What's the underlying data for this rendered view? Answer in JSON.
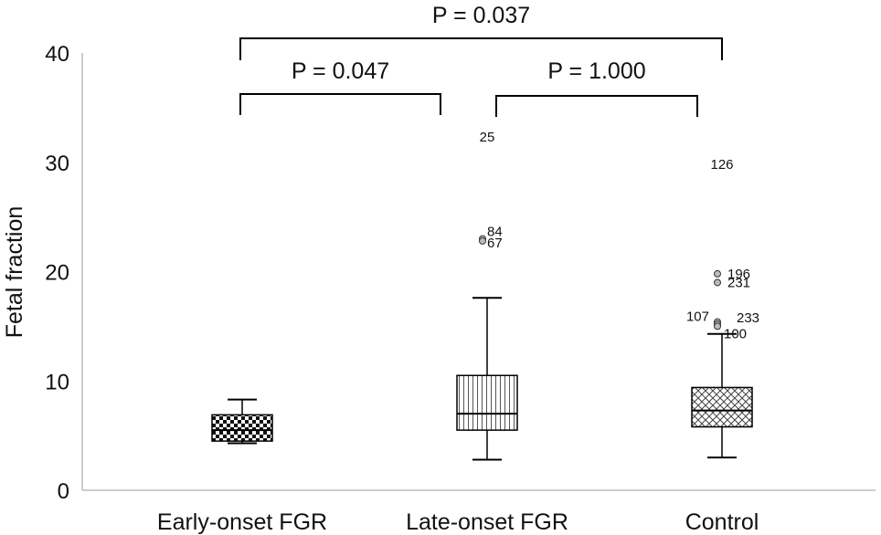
{
  "chart_data": {
    "type": "boxplot",
    "ylabel": "Fetal fraction",
    "xlabel": "",
    "ylim": [
      0,
      40
    ],
    "yticks": [
      "0",
      "10",
      "20",
      "30",
      "40"
    ],
    "grid": false,
    "categories": [
      "Early-onset FGR",
      "Late-onset FGR",
      "Control"
    ],
    "boxes": [
      {
        "category": "Early-onset FGR",
        "whisker_low": 4.3,
        "q1": 4.5,
        "median": 5.5,
        "q3": 6.9,
        "whisker_high": 8.3,
        "pattern": "checker",
        "outliers": []
      },
      {
        "category": "Late-onset FGR",
        "whisker_low": 2.8,
        "q1": 5.5,
        "median": 7.0,
        "q3": 10.5,
        "whisker_high": 17.6,
        "pattern": "vlines",
        "outliers": [
          {
            "value": 32.3,
            "label": "25",
            "marker": false
          },
          {
            "value": 23.0,
            "label": "84",
            "marker": true
          },
          {
            "value": 22.8,
            "label": "67",
            "marker": true
          }
        ]
      },
      {
        "category": "Control",
        "whisker_low": 3.0,
        "q1": 5.8,
        "median": 7.3,
        "q3": 9.4,
        "whisker_high": 14.3,
        "pattern": "crosshatch",
        "outliers": [
          {
            "value": 29.8,
            "label": "126",
            "marker": false
          },
          {
            "value": 19.8,
            "label": "196",
            "marker": true
          },
          {
            "value": 19.0,
            "label": "231",
            "marker": true
          },
          {
            "value": 15.4,
            "label": "107",
            "marker": true
          },
          {
            "value": 15.2,
            "label": "233",
            "marker": true
          },
          {
            "value": 15.0,
            "label": "100",
            "marker": true
          }
        ]
      }
    ],
    "annotations": [
      {
        "from": "Early-onset FGR",
        "to": "Late-onset FGR",
        "text": "P = 0.047"
      },
      {
        "from": "Late-onset FGR",
        "to": "Control",
        "text": "P = 1.000"
      },
      {
        "from": "Early-onset FGR",
        "to": "Control",
        "text": "P = 0.037"
      }
    ]
  }
}
